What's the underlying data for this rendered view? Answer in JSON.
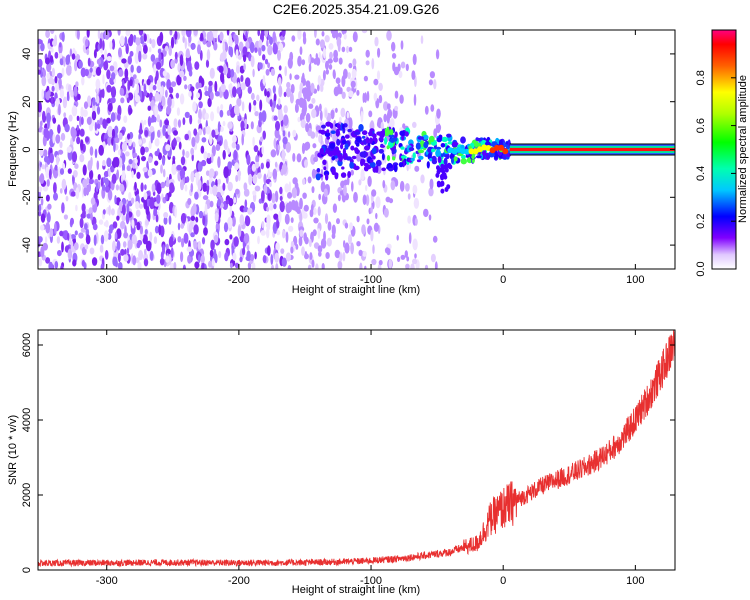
{
  "title": "C2E6.2025.354.21.09.G26",
  "chart_data": [
    {
      "type": "heatmap",
      "xlabel": "Height of straight line (km)",
      "ylabel": "Frequency (Hz)",
      "xlim": [
        -352,
        130
      ],
      "ylim": [
        -50,
        50
      ],
      "xticks": [
        -300,
        -200,
        -100,
        0,
        100
      ],
      "yticks": [
        -40,
        -20,
        0,
        20,
        40
      ],
      "colorbar": {
        "label": "Normalized spectral amplitude",
        "range": [
          0,
          1
        ],
        "ticks": [
          0.0,
          0.2,
          0.4,
          0.6,
          0.8
        ]
      },
      "features": {
        "noise_region_x": [
          -352,
          -40
        ],
        "signal_line_y": 0,
        "signal_line_start_x": 5,
        "signal_amplitude_near_end": 1.0
      }
    },
    {
      "type": "line",
      "xlabel": "Height of straight line (km)",
      "ylabel": "SNR (10 * v/v)",
      "xlim": [
        -352,
        130
      ],
      "ylim": [
        0,
        6400
      ],
      "xticks": [
        -300,
        -200,
        -100,
        0,
        100
      ],
      "yticks": [
        0,
        2000,
        4000,
        6000
      ],
      "series": [
        {
          "color": "#e83030",
          "x": [
            -352,
            -300,
            -250,
            -200,
            -150,
            -120,
            -100,
            -80,
            -60,
            -50,
            -40,
            -30,
            -25,
            -20,
            -15,
            -10,
            -5,
            0,
            10,
            20,
            30,
            40,
            50,
            60,
            70,
            80,
            90,
            100,
            110,
            120,
            130
          ],
          "y": [
            180,
            190,
            200,
            190,
            200,
            220,
            250,
            300,
            380,
            430,
            480,
            600,
            650,
            700,
            1000,
            1350,
            1500,
            1650,
            1850,
            2050,
            2250,
            2400,
            2550,
            2700,
            2900,
            3150,
            3500,
            4000,
            4600,
            5300,
            6100
          ]
        }
      ]
    }
  ]
}
